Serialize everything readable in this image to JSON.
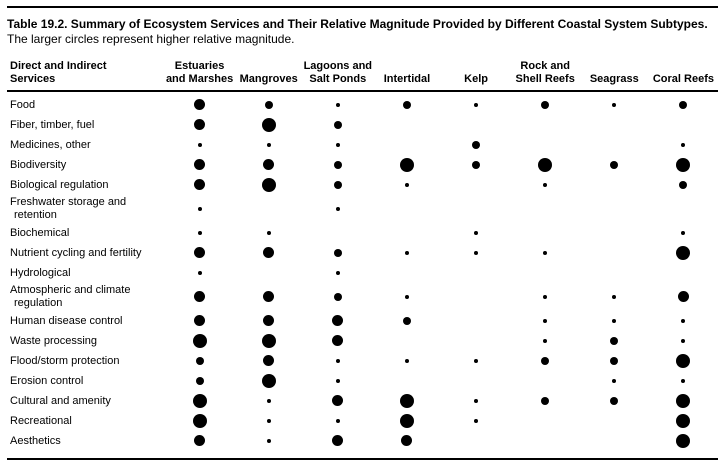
{
  "caption": {
    "bold": "Table 19.2.  Summary of Ecosystem Services and Their Relative Magnitude Provided by Different Coastal System Subtypes.",
    "note": "The larger circles represent higher relative magnitude."
  },
  "table": {
    "row_header": "Direct and Indirect\nServices",
    "columns": [
      "Estuaries\nand Marshes",
      "Mangroves",
      "Lagoons and\nSalt Ponds",
      "Intertidal",
      "Kelp",
      "Rock and\nShell Reefs",
      "Seagrass",
      "Coral Reefs"
    ],
    "magnitude_levels": {
      "0": "none",
      "1": "small",
      "2": "medium",
      "3": "large",
      "4": "largest"
    },
    "rows": [
      {
        "service": "Food",
        "values": [
          3,
          2,
          1,
          2,
          1,
          2,
          1,
          2
        ]
      },
      {
        "service": "Fiber, timber, fuel",
        "values": [
          3,
          4,
          2,
          0,
          0,
          0,
          0,
          0
        ]
      },
      {
        "service": "Medicines, other",
        "values": [
          1,
          1,
          1,
          0,
          2,
          0,
          0,
          1
        ]
      },
      {
        "service": "Biodiversity",
        "values": [
          3,
          3,
          2,
          4,
          2,
          4,
          2,
          4
        ]
      },
      {
        "service": "Biological regulation",
        "values": [
          3,
          4,
          2,
          1,
          0,
          1,
          0,
          2
        ]
      },
      {
        "service": "Freshwater storage and retention",
        "values": [
          1,
          0,
          1,
          0,
          0,
          0,
          0,
          0
        ]
      },
      {
        "service": "Biochemical",
        "values": [
          1,
          1,
          0,
          0,
          1,
          0,
          0,
          1
        ]
      },
      {
        "service": "Nutrient cycling and fertility",
        "values": [
          3,
          3,
          2,
          1,
          1,
          1,
          0,
          4
        ]
      },
      {
        "service": "Hydrological",
        "values": [
          1,
          0,
          1,
          0,
          0,
          0,
          0,
          0
        ]
      },
      {
        "service": "Atmospheric and climate regulation",
        "values": [
          3,
          3,
          2,
          1,
          0,
          1,
          1,
          3
        ]
      },
      {
        "service": "Human disease control",
        "values": [
          3,
          3,
          3,
          2,
          0,
          1,
          1,
          1
        ]
      },
      {
        "service": "Waste processing",
        "values": [
          4,
          4,
          3,
          0,
          0,
          1,
          2,
          1
        ]
      },
      {
        "service": "Flood/storm protection",
        "values": [
          2,
          3,
          1,
          1,
          1,
          2,
          2,
          4
        ]
      },
      {
        "service": "Erosion control",
        "values": [
          2,
          4,
          1,
          0,
          0,
          0,
          1,
          1
        ]
      },
      {
        "service": "Cultural and amenity",
        "values": [
          4,
          1,
          3,
          4,
          1,
          2,
          2,
          4
        ]
      },
      {
        "service": "Recreational",
        "values": [
          4,
          1,
          1,
          4,
          1,
          0,
          0,
          4
        ]
      },
      {
        "service": "Aesthetics",
        "values": [
          3,
          1,
          3,
          3,
          0,
          0,
          0,
          4
        ]
      }
    ]
  },
  "colors": {
    "text": "#000000",
    "dot": "#000000",
    "background": "#ffffff",
    "rule": "#000000"
  }
}
